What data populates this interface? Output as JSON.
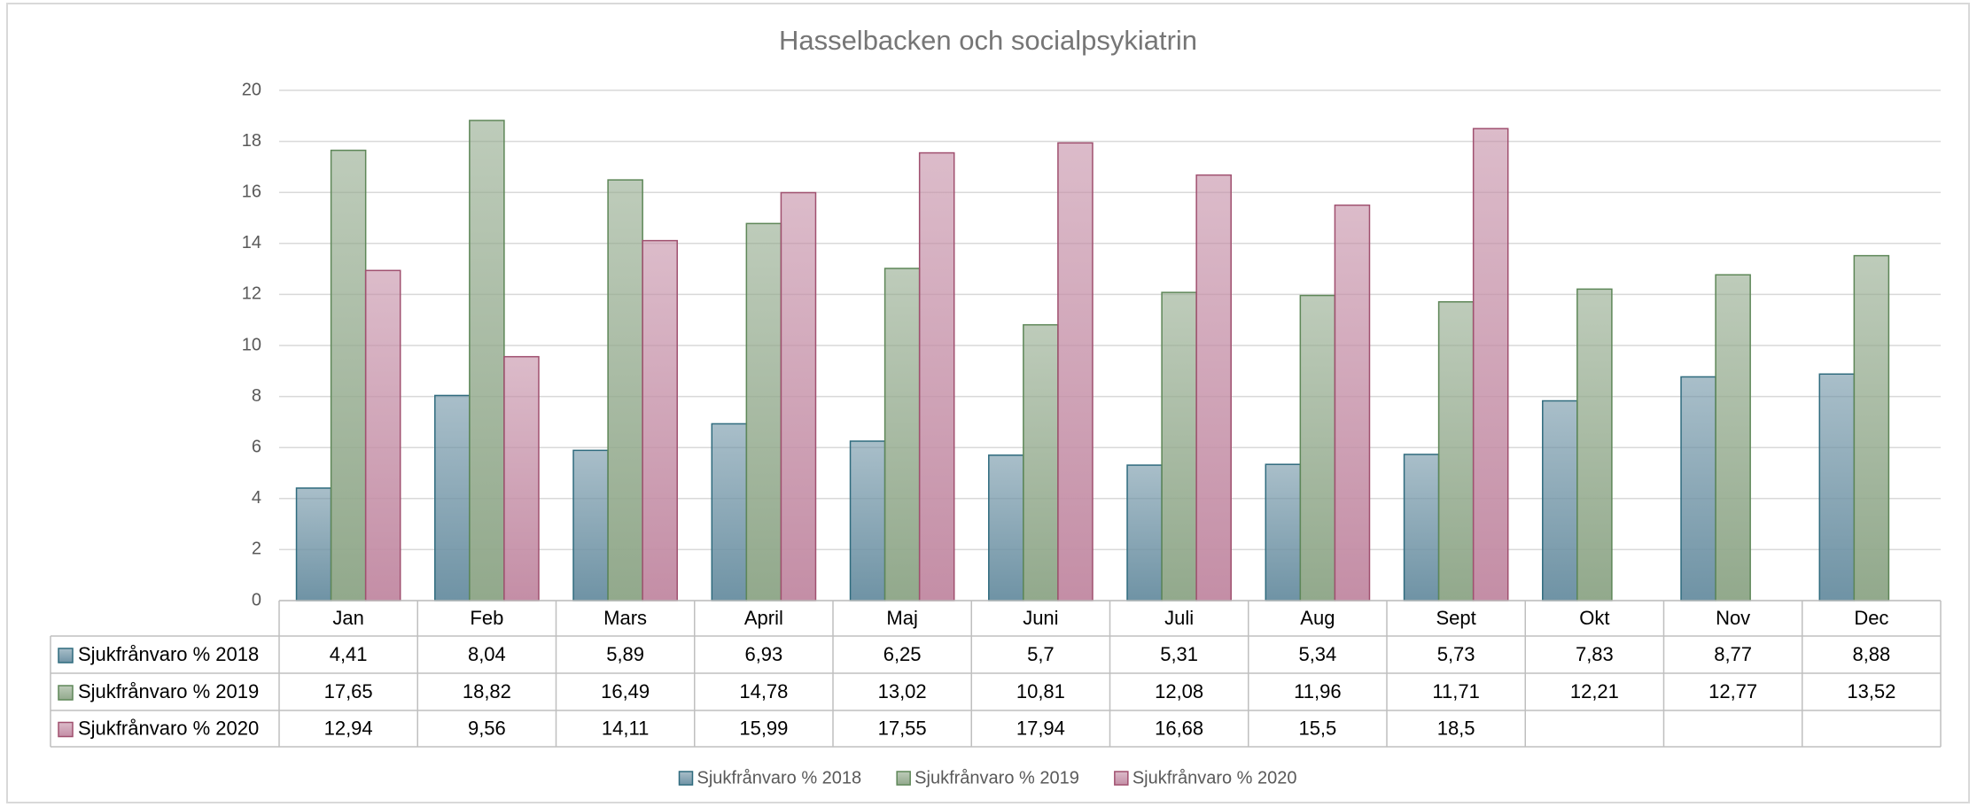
{
  "chart_data": {
    "type": "bar",
    "title": "Hasselbacken och socialpsykiatrin",
    "categories": [
      "Jan",
      "Feb",
      "Mars",
      "April",
      "Maj",
      "Juni",
      "Juli",
      "Aug",
      "Sept",
      "Okt",
      "Nov",
      "Dec"
    ],
    "series": [
      {
        "name": "Sjukfrånvaro % 2018",
        "color": "#6f93a5",
        "edge": "#2f6b7e",
        "values": [
          4.41,
          8.04,
          5.89,
          6.93,
          6.25,
          5.7,
          5.31,
          5.34,
          5.73,
          7.83,
          8.77,
          8.88
        ],
        "value_labels": [
          "4,41",
          "8,04",
          "5,89",
          "6,93",
          "6,25",
          "5,7",
          "5,31",
          "5,34",
          "5,73",
          "7,83",
          "8,77",
          "8,88"
        ]
      },
      {
        "name": "Sjukfrånvaro % 2019",
        "color": "#92a98c",
        "edge": "#5e8758",
        "values": [
          17.65,
          18.82,
          16.49,
          14.78,
          13.02,
          10.81,
          12.08,
          11.96,
          11.71,
          12.21,
          12.77,
          13.52
        ],
        "value_labels": [
          "17,65",
          "18,82",
          "16,49",
          "14,78",
          "13,02",
          "10,81",
          "12,08",
          "11,96",
          "11,71",
          "12,21",
          "12,77",
          "13,52"
        ]
      },
      {
        "name": "Sjukfrånvaro % 2020",
        "color": "#c48ea6",
        "edge": "#a0506f",
        "values": [
          12.94,
          9.56,
          14.11,
          15.99,
          17.55,
          17.94,
          16.68,
          15.5,
          18.5,
          null,
          null,
          null
        ],
        "value_labels": [
          "12,94",
          "9,56",
          "14,11",
          "15,99",
          "17,55",
          "17,94",
          "16,68",
          "15,5",
          "18,5",
          null,
          null,
          null
        ]
      }
    ],
    "ylim": [
      0,
      20
    ],
    "yticks": [
      0,
      2,
      4,
      6,
      8,
      10,
      12,
      14,
      16,
      18,
      20
    ],
    "grid": true,
    "legend": "bottom"
  }
}
